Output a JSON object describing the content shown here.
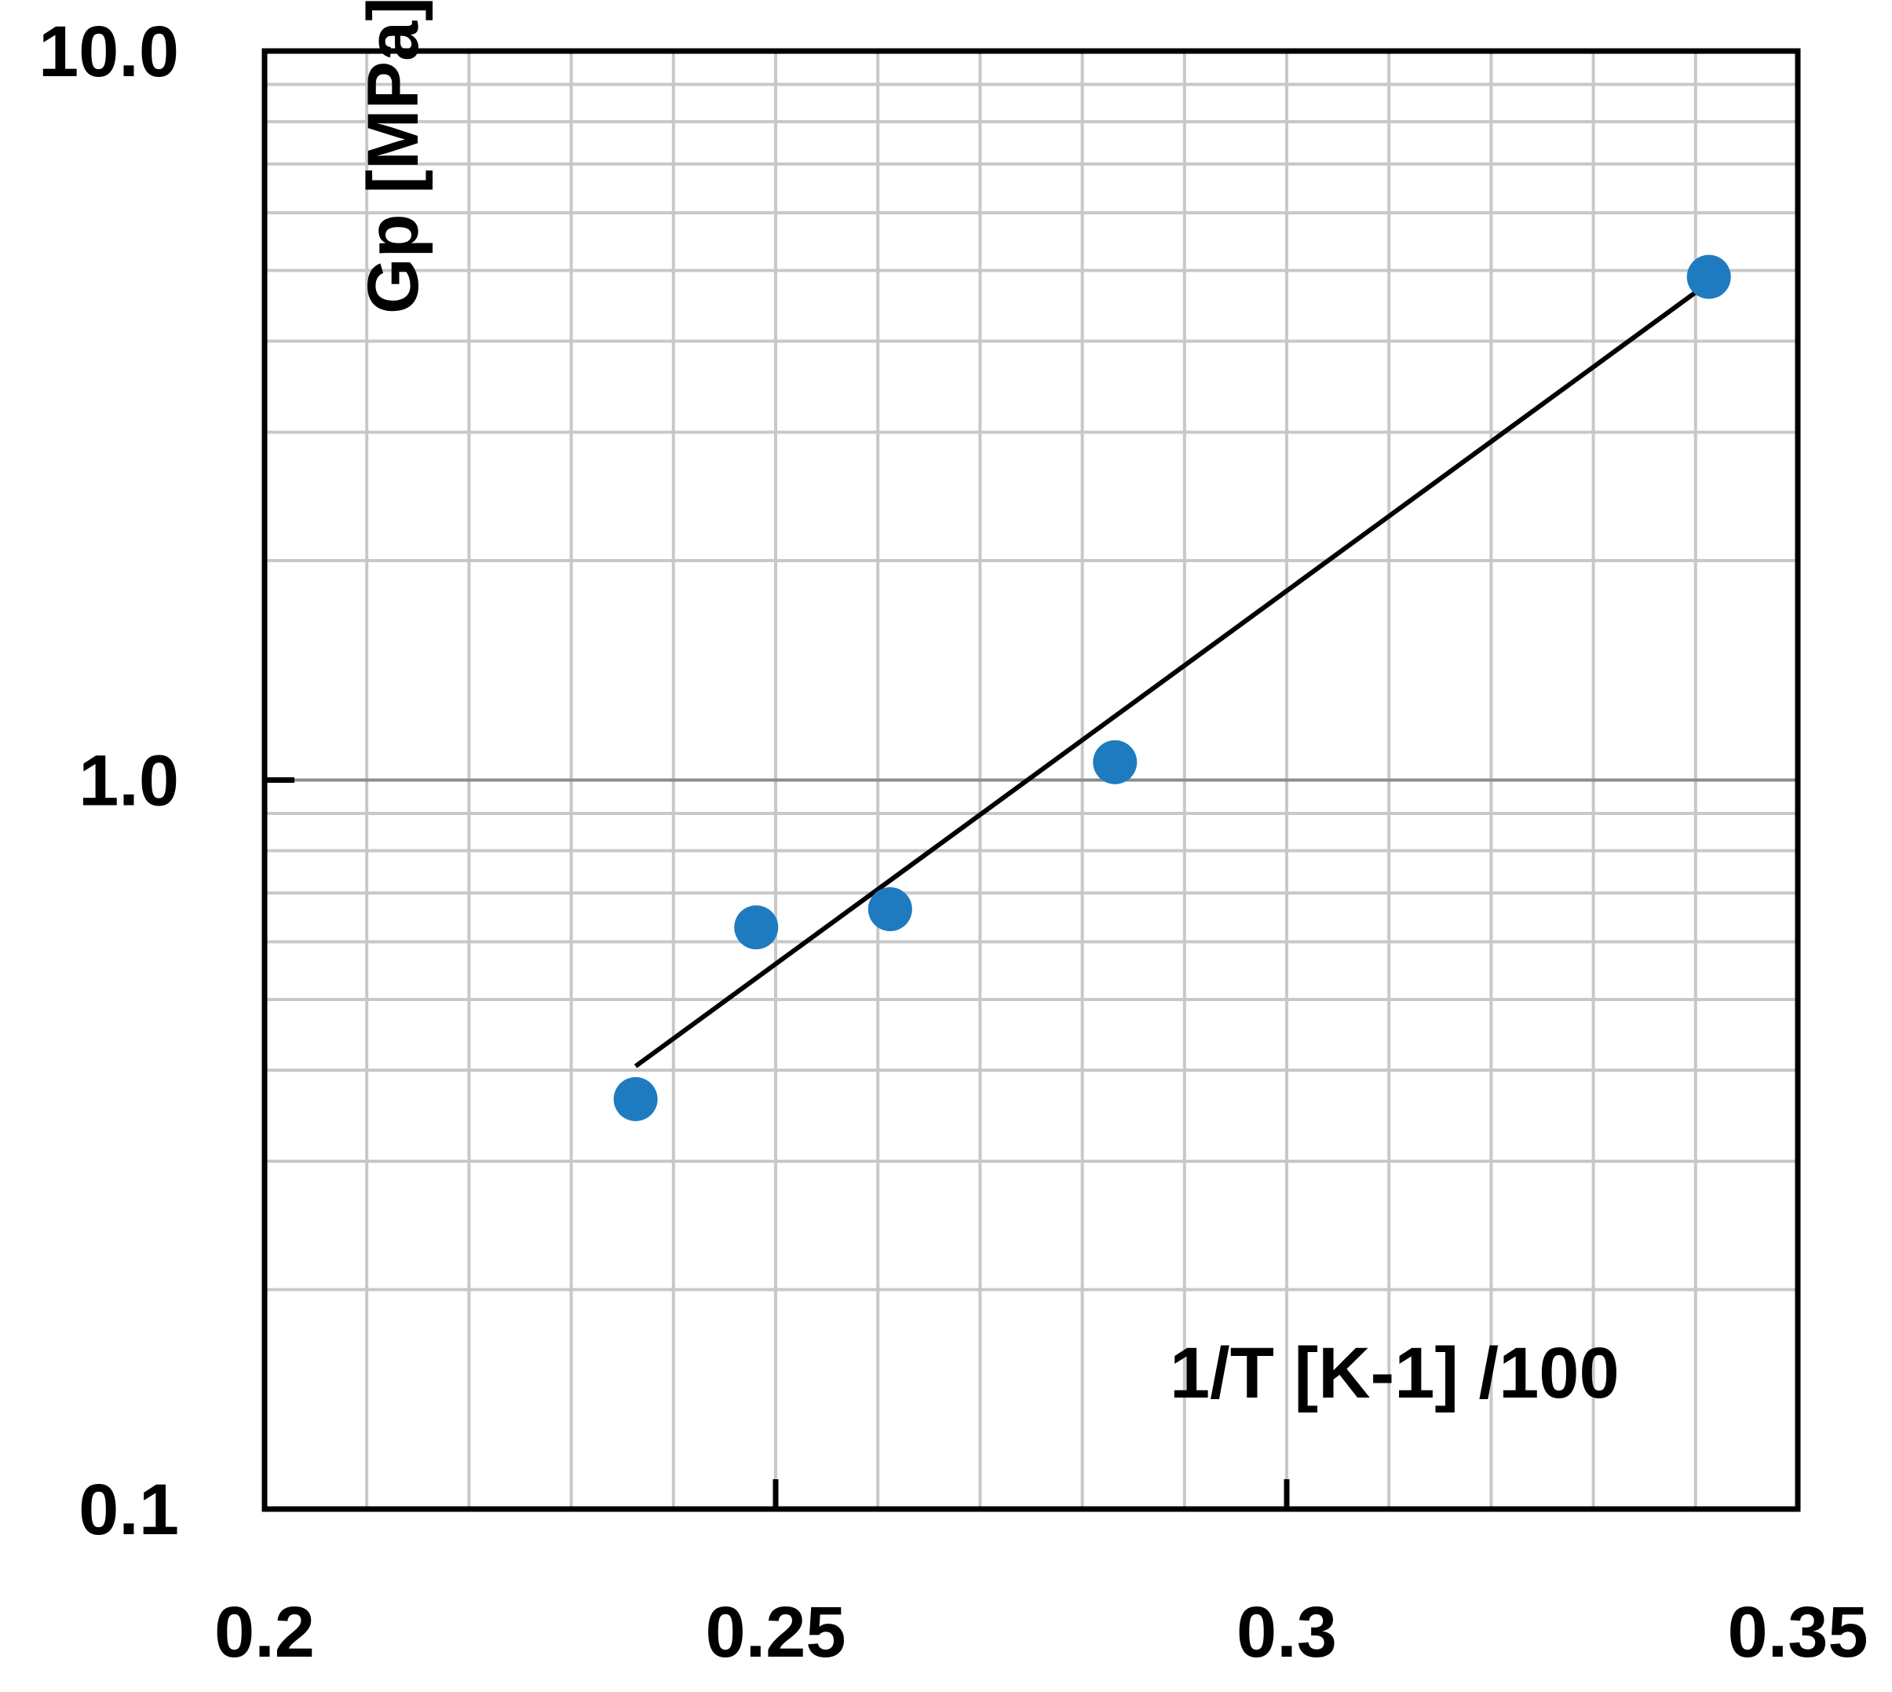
{
  "chart_data": {
    "type": "scatter",
    "title": "",
    "xlabel": "1/T [K-1] /100",
    "ylabel": "Gp [MPa]",
    "x_scale": "linear",
    "y_scale": "log",
    "xlim": [
      0.2,
      0.35
    ],
    "ylim": [
      0.1,
      10.0
    ],
    "x_ticks": [
      {
        "value": 0.2,
        "label": "0.2"
      },
      {
        "value": 0.25,
        "label": "0.25"
      },
      {
        "value": 0.3,
        "label": "0.3"
      },
      {
        "value": 0.35,
        "label": "0.35"
      }
    ],
    "y_ticks": [
      {
        "value": 0.1,
        "label": "0.1"
      },
      {
        "value": 1.0,
        "label": "1.0"
      },
      {
        "value": 10.0,
        "label": "10.0"
      }
    ],
    "x_minor_step": 0.01,
    "grid": true,
    "legend": "none",
    "colors": {
      "points": "#1f7bbf",
      "fit_line": "#000000",
      "grid": "#c8c8c8",
      "axes": "#000000"
    },
    "series": [
      {
        "type": "scatter",
        "points": [
          {
            "x": 0.2363,
            "y": 0.365
          },
          {
            "x": 0.2481,
            "y": 0.628
          },
          {
            "x": 0.2612,
            "y": 0.665
          },
          {
            "x": 0.2832,
            "y": 1.058
          },
          {
            "x": 0.3413,
            "y": 4.9
          }
        ]
      },
      {
        "type": "line",
        "name_printed": false,
        "points": [
          {
            "x": 0.2363,
            "y": 0.405
          },
          {
            "x": 0.3403,
            "y": 4.7
          }
        ]
      }
    ]
  }
}
